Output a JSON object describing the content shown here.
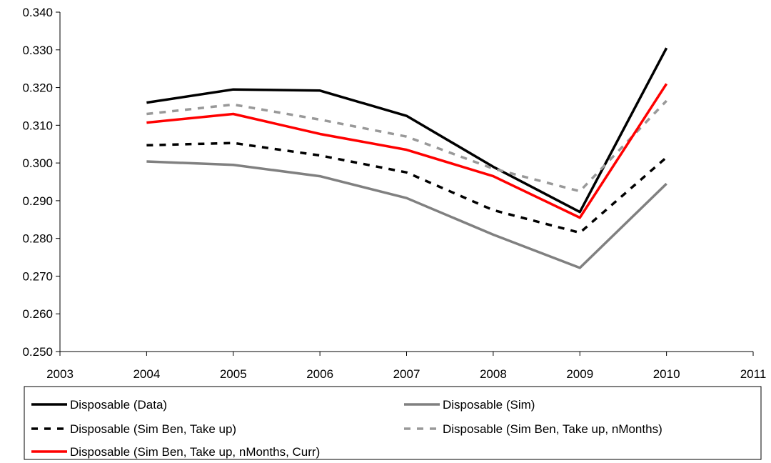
{
  "chart_data": {
    "type": "line",
    "title": "",
    "xlabel": "",
    "ylabel": "",
    "x": [
      2004,
      2005,
      2006,
      2007,
      2008,
      2009,
      2010
    ],
    "xlim": [
      2003,
      2011
    ],
    "ylim": [
      0.25,
      0.34
    ],
    "x_ticks": [
      "2003",
      "2004",
      "2005",
      "2006",
      "2007",
      "2008",
      "2009",
      "2010",
      "2011"
    ],
    "y_ticks": [
      "0.250",
      "0.260",
      "0.270",
      "0.280",
      "0.290",
      "0.300",
      "0.310",
      "0.320",
      "0.330",
      "0.340"
    ],
    "grid": false,
    "legend_position": "bottom",
    "series": [
      {
        "name": "Disposable (Data)",
        "color": "#000000",
        "dash": "solid",
        "values": [
          0.316,
          0.3195,
          0.3192,
          0.3125,
          0.299,
          0.287,
          0.3305
        ]
      },
      {
        "name": "Disposable (Sim)",
        "color": "#808080",
        "dash": "solid",
        "values": [
          0.3004,
          0.2995,
          0.2965,
          0.2907,
          0.281,
          0.2722,
          0.2945
        ]
      },
      {
        "name": "Disposable (Sim Ben, Take up)",
        "color": "#000000",
        "dash": "dashed",
        "values": [
          0.3047,
          0.3053,
          0.302,
          0.2975,
          0.2875,
          0.2815,
          0.3015
        ]
      },
      {
        "name": "Disposable (Sim Ben, Take up, nMonths)",
        "color": "#999999",
        "dash": "dashed",
        "values": [
          0.313,
          0.3155,
          0.3115,
          0.307,
          0.2985,
          0.2925,
          0.3165
        ]
      },
      {
        "name": "Disposable (Sim Ben, Take up, nMonths, Curr)",
        "color": "#ff0000",
        "dash": "solid",
        "values": [
          0.3107,
          0.313,
          0.3077,
          0.3035,
          0.2965,
          0.2855,
          0.321
        ]
      }
    ]
  }
}
